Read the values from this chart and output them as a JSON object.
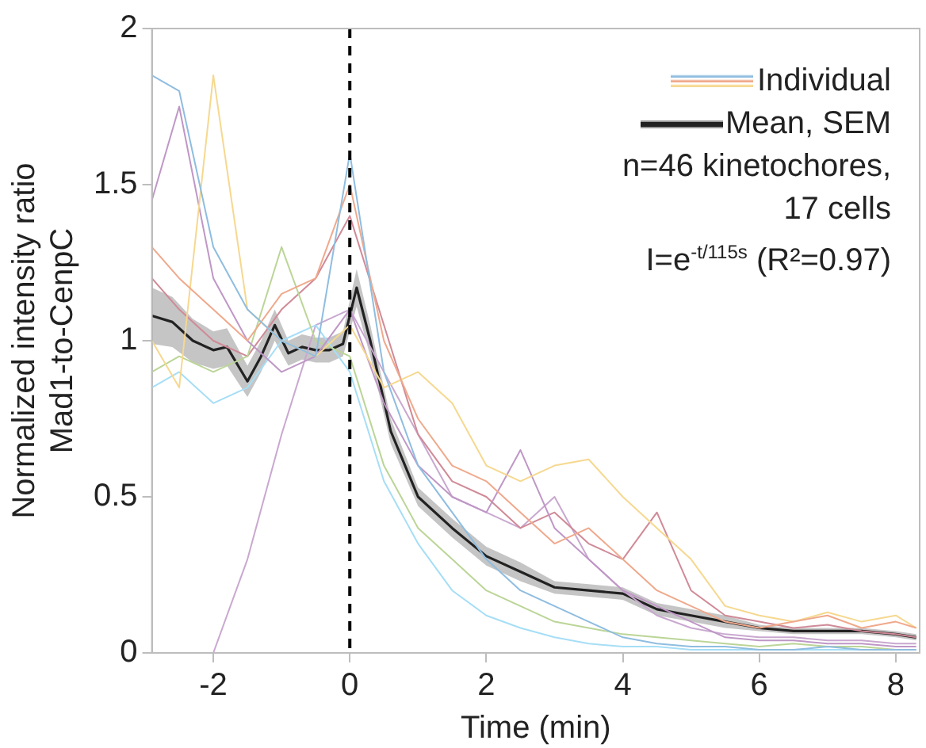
{
  "chart_data": {
    "type": "line",
    "xlabel": "Time (min)",
    "ylabel": "Normalized intensity ratio\nMad1-to-CenpC",
    "x": [
      -2.9,
      -2.5,
      -2,
      -1.5,
      -1,
      -0.5,
      0,
      0.5,
      1,
      1.5,
      2,
      2.5,
      3,
      3.5,
      4,
      4.5,
      5,
      5.5,
      6,
      6.5,
      7,
      7.5,
      8,
      8.3
    ],
    "series": [
      {
        "name": "Individual",
        "color": "#8fbde0",
        "values": [
          1.85,
          1.8,
          1.3,
          1.1,
          1.0,
          0.95,
          1.6,
          0.9,
          0.6,
          0.45,
          0.3,
          0.2,
          0.15,
          0.1,
          0.05,
          0.03,
          0.02,
          0.02,
          0.01,
          0.01,
          0.02,
          0.01,
          0.01,
          0.01
        ]
      },
      {
        "color": "#efa98c",
        "values": [
          1.3,
          1.2,
          1.1,
          1.0,
          1.15,
          1.2,
          1.5,
          1.0,
          0.75,
          0.6,
          0.55,
          0.45,
          0.35,
          0.4,
          0.3,
          0.2,
          0.15,
          0.1,
          0.08,
          0.1,
          0.12,
          0.08,
          0.1,
          0.08
        ]
      },
      {
        "color": "#f6d88f",
        "values": [
          1.0,
          0.85,
          1.85,
          1.1,
          1.0,
          0.95,
          1.05,
          0.85,
          0.9,
          0.8,
          0.6,
          0.55,
          0.6,
          0.62,
          0.5,
          0.4,
          0.3,
          0.15,
          0.12,
          0.1,
          0.13,
          0.1,
          0.12,
          0.08
        ]
      },
      {
        "color": "#bf97c6",
        "values": [
          1.45,
          1.75,
          1.2,
          1.0,
          0.9,
          0.95,
          1.1,
          0.8,
          0.6,
          0.5,
          0.45,
          0.65,
          0.4,
          0.3,
          0.2,
          0.15,
          0.1,
          0.05,
          0.04,
          0.04,
          0.03,
          0.03,
          0.02,
          0.02
        ]
      },
      {
        "color": "#bbd597",
        "values": [
          0.9,
          0.95,
          0.9,
          0.95,
          1.3,
          1.0,
          0.95,
          0.6,
          0.4,
          0.3,
          0.2,
          0.15,
          0.1,
          0.08,
          0.06,
          0.05,
          0.04,
          0.03,
          0.02,
          0.03,
          0.02,
          0.02,
          0.01,
          0.01
        ]
      },
      {
        "color": "#a6def6",
        "values": [
          0.85,
          0.9,
          0.8,
          0.85,
          1.0,
          1.05,
          0.9,
          0.55,
          0.35,
          0.2,
          0.12,
          0.08,
          0.05,
          0.03,
          0.02,
          0.02,
          0.01,
          0.01,
          0.01,
          0.01,
          0.01,
          0.01,
          0.01,
          0.01
        ]
      },
      {
        "color": "#d08a97",
        "values": [
          1.2,
          1.1,
          1.0,
          0.95,
          1.1,
          1.2,
          1.4,
          1.05,
          0.7,
          0.55,
          0.5,
          0.4,
          0.45,
          0.35,
          0.3,
          0.45,
          0.2,
          0.12,
          0.1,
          0.08,
          0.09,
          0.07,
          0.06,
          0.05
        ]
      },
      {
        "color": "#c9a8d0",
        "values": [
          null,
          null,
          0.0,
          0.3,
          0.7,
          1.05,
          1.1,
          0.9,
          0.7,
          0.5,
          0.45,
          0.4,
          0.5,
          0.3,
          0.2,
          0.12,
          0.08,
          0.06,
          0.05,
          0.05,
          0.04,
          0.04,
          0.03,
          0.03
        ]
      },
      {
        "name": "Mean, SEM",
        "color": "#222222",
        "x": [
          -2.9,
          -2.6,
          -2.3,
          -2.0,
          -1.8,
          -1.5,
          -1.3,
          -1.1,
          -0.9,
          -0.7,
          -0.5,
          -0.3,
          -0.1,
          0.1,
          0.3,
          0.6,
          1.0,
          1.5,
          2.0,
          2.5,
          3.0,
          3.5,
          4.0,
          4.5,
          5.0,
          5.5,
          6.0,
          6.5,
          7.0,
          7.5,
          8.0,
          8.3
        ],
        "values": [
          1.08,
          1.06,
          1.0,
          0.97,
          0.98,
          0.87,
          0.95,
          1.05,
          0.96,
          0.98,
          0.97,
          0.97,
          0.99,
          1.17,
          1.0,
          0.71,
          0.5,
          0.4,
          0.31,
          0.26,
          0.21,
          0.2,
          0.19,
          0.14,
          0.12,
          0.1,
          0.08,
          0.07,
          0.07,
          0.07,
          0.06,
          0.05
        ],
        "lower": [
          0.99,
          0.98,
          0.93,
          0.91,
          0.92,
          0.82,
          0.9,
          1.0,
          0.92,
          0.94,
          0.93,
          0.93,
          0.95,
          1.11,
          0.95,
          0.67,
          0.47,
          0.37,
          0.28,
          0.23,
          0.19,
          0.18,
          0.17,
          0.12,
          0.1,
          0.08,
          0.07,
          0.06,
          0.06,
          0.06,
          0.05,
          0.04
        ],
        "upper": [
          1.17,
          1.14,
          1.07,
          1.03,
          1.04,
          0.92,
          1.0,
          1.1,
          1.0,
          1.02,
          1.01,
          1.01,
          1.03,
          1.23,
          1.05,
          0.75,
          0.53,
          0.43,
          0.34,
          0.29,
          0.23,
          0.22,
          0.21,
          0.16,
          0.14,
          0.12,
          0.09,
          0.08,
          0.08,
          0.08,
          0.07,
          0.06
        ]
      }
    ],
    "xlim": [
      -2.9,
      8.35
    ],
    "xticks": [
      -2,
      0,
      2,
      4,
      6,
      8
    ],
    "ylim": [
      0,
      2
    ],
    "yticks": [
      0,
      0.5,
      1,
      1.5,
      2
    ],
    "ref_lines": [
      {
        "axis": "x",
        "value": 0,
        "color": "#000000",
        "line_style": "dashed"
      }
    ],
    "annotations": [
      "n=46 kinetochores,",
      "17 cells",
      "I=e$^{-t/115s}$ (R²=0.97)"
    ],
    "legend": "top right",
    "grid": false,
    "marker": "none",
    "line_style": "solid"
  }
}
